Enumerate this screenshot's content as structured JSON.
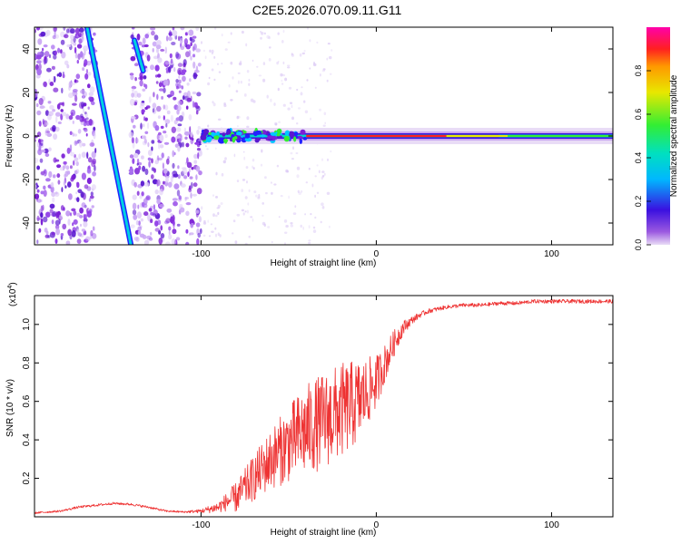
{
  "title": "C2E5.2026.070.09.11.G11",
  "colors": {
    "snr_line": "#ee3333",
    "axis": "#000000",
    "colorbar": [
      "#ff00aa",
      "#ff2020",
      "#ff9900",
      "#e8e800",
      "#33ee33",
      "#00dddd",
      "#2222ff",
      "#7b1fd6",
      "#e9dcf6"
    ]
  },
  "chart_data": [
    {
      "type": "heatmap",
      "name": "spectrogram",
      "xlabel": "Height of straight line (km)",
      "ylabel": "Frequency (Hz)",
      "xlim": [
        -195,
        135
      ],
      "ylim": [
        -50,
        50
      ],
      "xticks": [
        -100,
        0,
        100
      ],
      "xtick_labels": [
        "-100",
        "0",
        "100"
      ],
      "yticks": [
        -40,
        -20,
        0,
        20,
        40
      ],
      "ytick_labels": [
        "-40",
        "-20",
        "0",
        "20",
        "40"
      ],
      "colorbar": {
        "label": "Normalized spectral amplitude",
        "range": [
          0,
          1
        ],
        "ticks": [
          0.0,
          0.2,
          0.4,
          0.6,
          0.8
        ],
        "tick_labels": [
          "0.0",
          "0.2",
          "0.4",
          "0.6",
          "0.8"
        ]
      },
      "noise_regions": [
        [
          -195,
          -160
        ],
        [
          -140,
          -100
        ]
      ],
      "streaks": [
        {
          "x_start": -165,
          "f_start": 50,
          "x_end": -140,
          "f_end": -50
        },
        {
          "x_start": -138,
          "f_start": 44,
          "x_end": -133,
          "f_end": 30
        }
      ],
      "carrier": {
        "x_start": -100,
        "x_end": 135,
        "freq": 0,
        "bright_from": -40
      }
    },
    {
      "type": "line",
      "name": "snr",
      "xlabel": "Height of straight line (km)",
      "ylabel": "SNR (10 * v/v)",
      "y_exponent_label": "(x10",
      "y_exponent_power": "4",
      "y_exponent_close": ")",
      "xlim": [
        -195,
        135
      ],
      "ylim": [
        0.0,
        1.15
      ],
      "xticks": [
        -100,
        0,
        100
      ],
      "xtick_labels": [
        "-100",
        "0",
        "100"
      ],
      "yticks": [
        0.2,
        0.4,
        0.6,
        0.8,
        1.0
      ],
      "ytick_labels": [
        "0.2",
        "0.4",
        "0.6",
        "0.8",
        "1.0"
      ],
      "series": [
        {
          "name": "SNR",
          "x": [
            -195,
            -180,
            -170,
            -160,
            -150,
            -140,
            -130,
            -120,
            -110,
            -100,
            -90,
            -85,
            -80,
            -70,
            -60,
            -50,
            -40,
            -30,
            -20,
            -10,
            -5,
            0,
            5,
            10,
            15,
            20,
            25,
            30,
            40,
            50,
            60,
            70,
            80,
            90,
            100,
            110,
            120,
            135
          ],
          "y": [
            0.02,
            0.03,
            0.05,
            0.06,
            0.07,
            0.065,
            0.05,
            0.03,
            0.025,
            0.03,
            0.05,
            0.08,
            0.1,
            0.2,
            0.3,
            0.38,
            0.45,
            0.5,
            0.55,
            0.6,
            0.65,
            0.7,
            0.8,
            0.9,
            0.98,
            1.02,
            1.05,
            1.07,
            1.09,
            1.1,
            1.1,
            1.11,
            1.11,
            1.12,
            1.12,
            1.12,
            1.12,
            1.12
          ],
          "noise": [
            0.005,
            0.005,
            0.006,
            0.006,
            0.006,
            0.006,
            0.006,
            0.005,
            0.005,
            0.01,
            0.03,
            0.05,
            0.08,
            0.12,
            0.16,
            0.2,
            0.24,
            0.25,
            0.25,
            0.22,
            0.18,
            0.14,
            0.1,
            0.07,
            0.04,
            0.02,
            0.015,
            0.012,
            0.01,
            0.01,
            0.01,
            0.01,
            0.01,
            0.01,
            0.01,
            0.01,
            0.01,
            0.01
          ]
        }
      ]
    }
  ]
}
